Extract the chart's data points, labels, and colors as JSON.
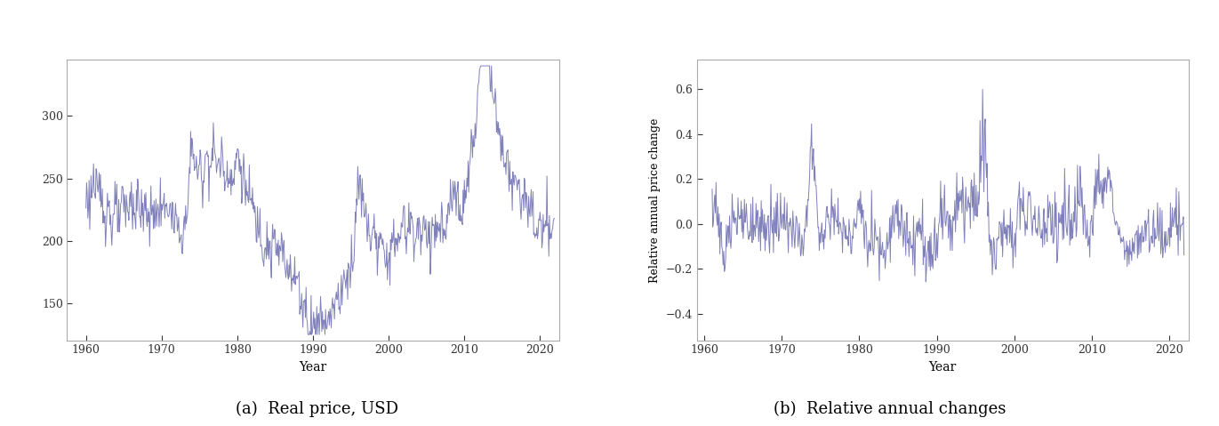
{
  "line_color": "#8080bb",
  "line_width": 0.7,
  "background_color": "#ffffff",
  "fig_caption_left": "(a)  Real price, USD",
  "fig_caption_right": "(b)  Relative annual changes",
  "xlabel": "Year",
  "ylabel_left": "",
  "ylabel_right": "Relative annual price change",
  "xlim_left": [
    1957.5,
    2022.5
  ],
  "xlim_right": [
    1959,
    2022.5
  ],
  "ylim_left": [
    120,
    345
  ],
  "ylim_right": [
    -0.52,
    0.73
  ],
  "yticks_left": [
    150,
    200,
    250,
    300
  ],
  "yticks_right": [
    -0.4,
    -0.2,
    0.0,
    0.2,
    0.4,
    0.6
  ],
  "xticks": [
    1960,
    1970,
    1980,
    1990,
    2000,
    2010,
    2020
  ],
  "caption_fontsize": 13,
  "tick_fontsize": 9,
  "label_fontsize": 10,
  "spine_color": "#aaaaaa",
  "seed": 123
}
